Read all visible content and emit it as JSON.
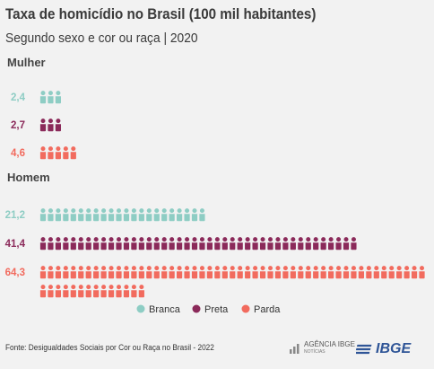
{
  "header": {
    "title": "Taxa de homicídio no Brasil (100 mil habitantes)",
    "subtitle": "Segundo sexo e cor ou raça | 2020"
  },
  "source": "Fonte: Desigualdades Sociais por Cor ou Raça no Brasil - 2022",
  "logos": {
    "agencia_name": "AGÊNCIA IBGE",
    "agencia_sub": "NOTÍCIAS",
    "ibge": "IBGE"
  },
  "colors": {
    "Branca": "#8ecdc4",
    "Preta": "#8b2a5a",
    "Parda": "#f26b5e"
  },
  "chart_data": {
    "type": "pictogram",
    "title": "Taxa de homicídio no Brasil (100 mil habitantes)",
    "subtitle": "Segundo sexo e cor ou raça | 2020",
    "unit_per_icon": 1,
    "groups": [
      {
        "name": "Mulher",
        "rows": [
          {
            "category": "Branca",
            "value": 2.4,
            "label": "2,4"
          },
          {
            "category": "Preta",
            "value": 2.7,
            "label": "2,7"
          },
          {
            "category": "Parda",
            "value": 4.6,
            "label": "4,6"
          }
        ]
      },
      {
        "name": "Homem",
        "rows": [
          {
            "category": "Branca",
            "value": 21.2,
            "label": "21,2"
          },
          {
            "category": "Preta",
            "value": 41.4,
            "label": "41,4"
          },
          {
            "category": "Parda",
            "value": 64.3,
            "label": "64,3"
          }
        ]
      }
    ],
    "legend": [
      "Branca",
      "Preta",
      "Parda"
    ],
    "legend_position": "bottom-center"
  }
}
